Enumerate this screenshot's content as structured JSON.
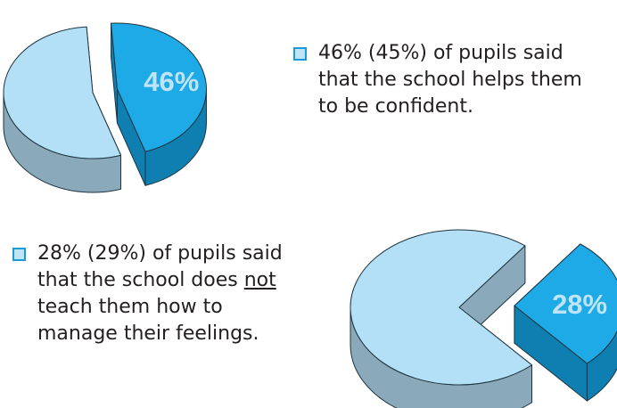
{
  "colors": {
    "major_top": "#b3e0f6",
    "major_side": "#8aaabb",
    "minor_top": "#1eaae6",
    "minor_side": "#0e7fb0",
    "outline": "#1f3540",
    "label": "#bfe4f7",
    "bullet": "#1a9ad6"
  },
  "chart_data": [
    {
      "type": "pie",
      "slices": [
        {
          "label": "46%",
          "value": 46
        },
        {
          "label": "",
          "value": 54
        }
      ],
      "exploded": "46%"
    },
    {
      "type": "pie",
      "slices": [
        {
          "label": "28%",
          "value": 28
        },
        {
          "label": "",
          "value": 72
        }
      ],
      "exploded": "28%"
    }
  ],
  "captions": {
    "confident": {
      "line1": "46% (45%) of pupils said",
      "line2": "that the school helps them",
      "line3": "to be confident."
    },
    "feelings": {
      "line1": "28% (29%) of pupils said",
      "line2_pre": "that the school does ",
      "line2_underlined": "not",
      "line3": "teach them how to",
      "line4": "manage their feelings."
    }
  }
}
